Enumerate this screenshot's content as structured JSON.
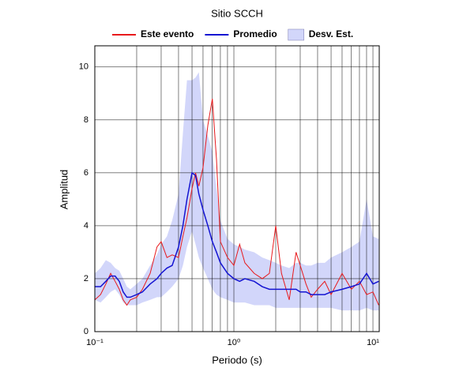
{
  "chart_data": {
    "type": "line",
    "title": "Sitio SCCH",
    "xlabel": "Periodo (s)",
    "ylabel": "Amplitud",
    "xscale": "log",
    "grid": true,
    "legend": "top",
    "xlim": [
      0.1,
      11.1
    ],
    "ylim": [
      0,
      10.8
    ],
    "xticks": [
      {
        "value": 0.1,
        "label": "10⁻¹"
      },
      {
        "value": 1,
        "label": "10⁰"
      },
      {
        "value": 10,
        "label": "10¹"
      }
    ],
    "xminorticks": [
      0.2,
      0.3,
      0.4,
      0.5,
      0.6,
      0.7,
      0.8,
      0.9,
      2,
      3,
      4,
      5,
      6,
      7,
      8,
      9
    ],
    "yticks": [
      0,
      2,
      4,
      6,
      8,
      10
    ],
    "x": [
      0.1,
      0.11,
      0.12,
      0.13,
      0.14,
      0.15,
      0.16,
      0.17,
      0.18,
      0.2,
      0.22,
      0.25,
      0.28,
      0.3,
      0.33,
      0.36,
      0.4,
      0.43,
      0.46,
      0.5,
      0.53,
      0.56,
      0.6,
      0.65,
      0.7,
      0.75,
      0.8,
      0.9,
      1,
      1.1,
      1.2,
      1.4,
      1.6,
      1.8,
      2,
      2.2,
      2.5,
      2.8,
      3,
      3.3,
      3.6,
      4,
      4.5,
      5,
      6,
      7,
      8,
      9,
      10,
      11
    ],
    "series": [
      {
        "name": "Este evento",
        "color": "#e8191c",
        "values": [
          1.2,
          1.4,
          1.8,
          2.2,
          1.9,
          1.6,
          1.2,
          1.0,
          1.2,
          1.3,
          1.6,
          2.2,
          3.2,
          3.4,
          2.8,
          2.9,
          2.8,
          3.6,
          4.3,
          5.4,
          6.0,
          5.5,
          6.2,
          7.8,
          8.8,
          6.5,
          3.4,
          2.8,
          2.5,
          3.3,
          2.6,
          2.2,
          2.0,
          2.2,
          4.0,
          2.2,
          1.2,
          3.0,
          2.5,
          1.8,
          1.3,
          1.6,
          1.9,
          1.4,
          2.2,
          1.6,
          1.9,
          1.4,
          1.5,
          1.0
        ]
      },
      {
        "name": "Promedio",
        "color": "#1414d2",
        "values": [
          1.7,
          1.7,
          1.9,
          2.1,
          2.1,
          1.9,
          1.5,
          1.3,
          1.3,
          1.4,
          1.5,
          1.8,
          2.0,
          2.2,
          2.4,
          2.5,
          3.2,
          4.0,
          5.0,
          6.0,
          5.9,
          5.2,
          4.6,
          4.0,
          3.4,
          3.0,
          2.6,
          2.2,
          2.0,
          1.9,
          2.0,
          1.9,
          1.7,
          1.6,
          1.6,
          1.6,
          1.6,
          1.6,
          1.5,
          1.5,
          1.4,
          1.4,
          1.4,
          1.5,
          1.6,
          1.7,
          1.8,
          2.2,
          1.8,
          1.9
        ]
      },
      {
        "name": "Desv. Est.",
        "color": "#d2d6fa",
        "type": "band",
        "upper": [
          2.2,
          2.4,
          2.7,
          2.6,
          2.4,
          2.3,
          2.0,
          1.7,
          1.6,
          1.8,
          2.0,
          2.5,
          2.9,
          3.3,
          3.6,
          4.2,
          5.2,
          7.5,
          9.5,
          9.5,
          9.6,
          9.8,
          8.0,
          7.4,
          6.8,
          5.4,
          4.2,
          3.5,
          3.3,
          3.2,
          3.1,
          3.0,
          2.8,
          2.7,
          2.6,
          2.5,
          2.4,
          2.6,
          2.6,
          2.5,
          2.5,
          2.6,
          2.6,
          2.8,
          3.0,
          3.2,
          3.4,
          5.0,
          3.6,
          3.5
        ],
        "lower": [
          1.2,
          1.1,
          1.3,
          1.5,
          1.6,
          1.4,
          1.1,
          1.0,
          1.0,
          1.0,
          1.1,
          1.2,
          1.3,
          1.3,
          1.5,
          1.7,
          2.0,
          2.5,
          3.2,
          3.8,
          3.3,
          2.8,
          2.4,
          2.0,
          1.6,
          1.4,
          1.3,
          1.2,
          1.1,
          1.1,
          1.1,
          1.0,
          1.0,
          1.0,
          0.9,
          0.9,
          0.9,
          0.9,
          0.9,
          0.9,
          0.9,
          0.9,
          0.9,
          0.9,
          0.8,
          0.8,
          0.8,
          0.9,
          0.8,
          0.8
        ]
      }
    ]
  }
}
